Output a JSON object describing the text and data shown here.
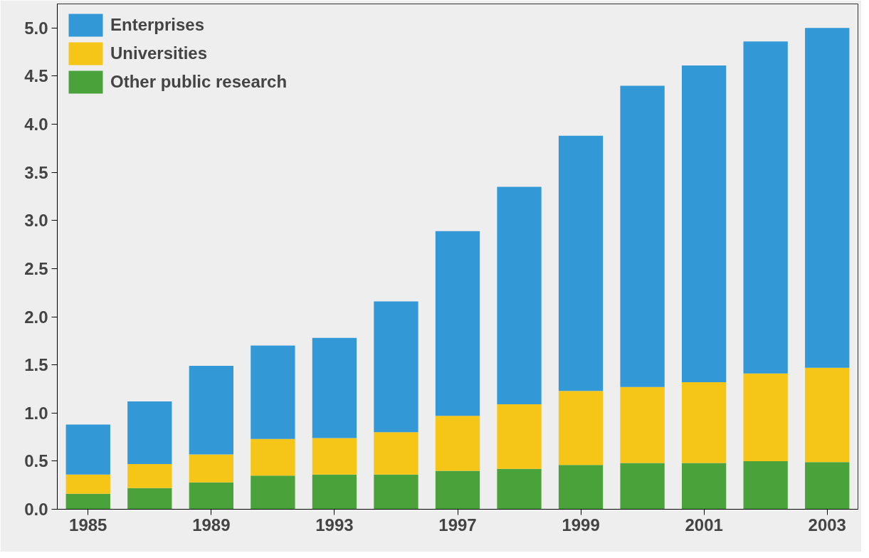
{
  "chart_data": {
    "type": "bar",
    "stacked": true,
    "categories": [
      "1985",
      null,
      "1989",
      null,
      "1993",
      null,
      "1997",
      null,
      "1999",
      null,
      "2001",
      null,
      "2003"
    ],
    "series": [
      {
        "name": "Other public research",
        "color": "#4aa33a",
        "values": [
          0.16,
          0.22,
          0.28,
          0.35,
          0.36,
          0.36,
          0.4,
          0.42,
          0.46,
          0.48,
          0.48,
          0.5,
          0.49
        ]
      },
      {
        "name": "Universities",
        "color": "#f5c518",
        "values": [
          0.2,
          0.25,
          0.29,
          0.38,
          0.38,
          0.44,
          0.57,
          0.67,
          0.77,
          0.79,
          0.84,
          0.91,
          0.98
        ]
      },
      {
        "name": "Enterprises",
        "color": "#3399d6",
        "values": [
          0.52,
          0.65,
          0.92,
          0.97,
          1.04,
          1.36,
          1.92,
          2.26,
          2.65,
          3.13,
          3.29,
          3.45,
          3.53
        ]
      }
    ],
    "ylim": [
      0,
      5.25
    ],
    "yticks": [
      {
        "value": 0,
        "label": "0.0"
      },
      0.5,
      {
        "value": 1,
        "label": "1.0"
      },
      1.5,
      {
        "value": 2,
        "label": "2.0"
      },
      2.5,
      {
        "value": 3,
        "label": "3.0"
      },
      3.5,
      {
        "value": 4,
        "label": "4.0"
      },
      4.5,
      {
        "value": 5,
        "label": "5.0"
      }
    ],
    "grid": false,
    "legend": "top left"
  }
}
